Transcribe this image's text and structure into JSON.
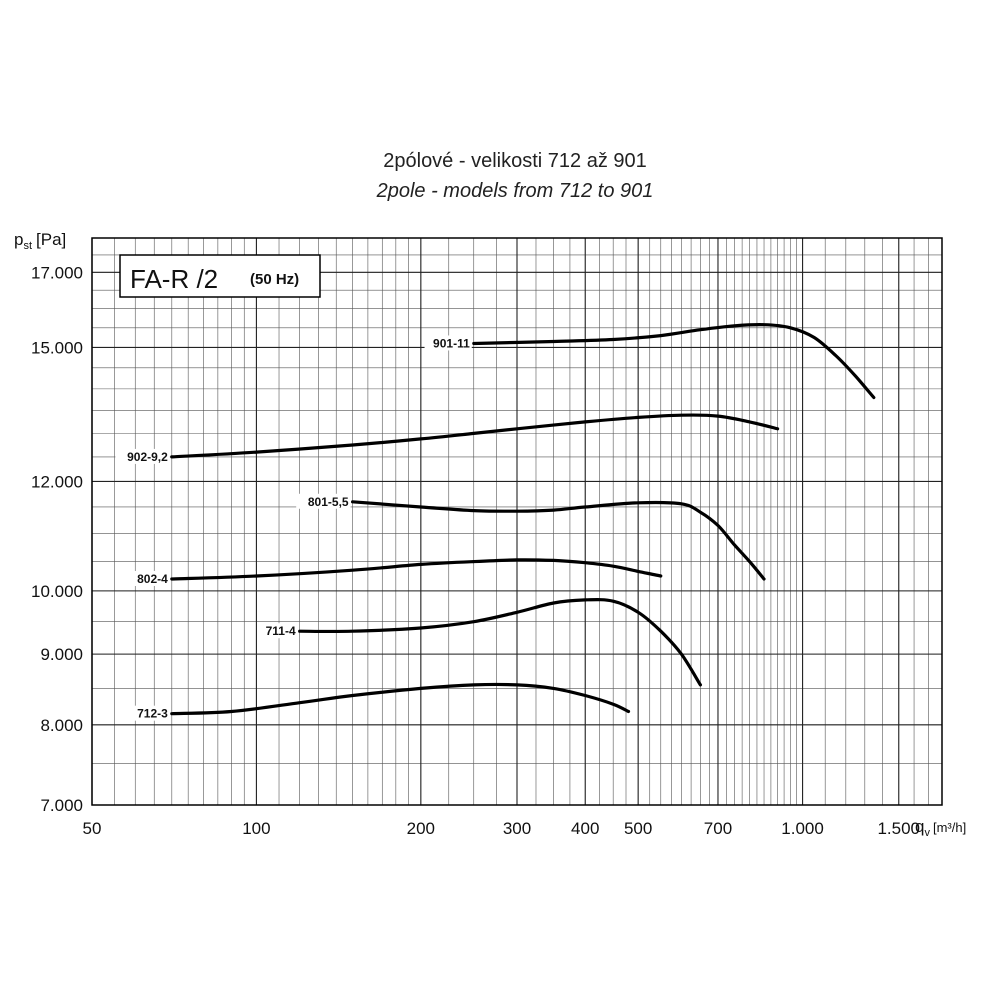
{
  "chart_data": {
    "type": "line",
    "title": "2pólové - velikosti 712 až 901",
    "subtitle": "2pole - models from 712 to 901",
    "xlabel": "q",
    "xlabel_sub": "v",
    "xlabel_unit": "[m³/h]",
    "ylabel": "p",
    "ylabel_sub": "st",
    "ylabel_unit": "[Pa]",
    "x_scale": "log",
    "y_scale": "log",
    "xlim": [
      50,
      1800
    ],
    "ylim": [
      7000,
      18000
    ],
    "grid": true,
    "x_ticks": [
      {
        "value": 50,
        "label": "50"
      },
      {
        "value": 100,
        "label": "100"
      },
      {
        "value": 200,
        "label": "200"
      },
      {
        "value": 300,
        "label": "300"
      },
      {
        "value": 400,
        "label": "400"
      },
      {
        "value": 500,
        "label": "500"
      },
      {
        "value": 700,
        "label": "700"
      },
      {
        "value": 1000,
        "label": "1.000"
      },
      {
        "value": 1500,
        "label": "1.500"
      }
    ],
    "y_ticks": [
      {
        "value": 7000,
        "label": "7.000"
      },
      {
        "value": 8000,
        "label": "8.000"
      },
      {
        "value": 9000,
        "label": "9.000"
      },
      {
        "value": 10000,
        "label": "10.000"
      },
      {
        "value": 12000,
        "label": "12.000"
      },
      {
        "value": 15000,
        "label": "15.000"
      },
      {
        "value": 17000,
        "label": "17.000"
      }
    ],
    "legend_box": {
      "main": "FA-R /2",
      "freq": "(50 Hz)"
    },
    "series": [
      {
        "name": "901-11",
        "x": [
          250,
          350,
          450,
          550,
          650,
          750,
          850,
          950,
          1050,
          1150,
          1250,
          1350
        ],
        "y": [
          15100,
          15150,
          15200,
          15300,
          15450,
          15550,
          15580,
          15500,
          15250,
          14800,
          14300,
          13800
        ]
      },
      {
        "name": "902-9,2",
        "x": [
          70,
          100,
          150,
          200,
          250,
          300,
          400,
          500,
          600,
          700,
          800,
          900
        ],
        "y": [
          12500,
          12600,
          12750,
          12880,
          13000,
          13100,
          13250,
          13350,
          13400,
          13380,
          13250,
          13100
        ]
      },
      {
        "name": "801-5,5",
        "x": [
          150,
          200,
          250,
          300,
          350,
          400,
          500,
          600,
          650,
          700,
          750,
          800,
          850
        ],
        "y": [
          11600,
          11500,
          11430,
          11420,
          11440,
          11500,
          11580,
          11560,
          11400,
          11150,
          10800,
          10500,
          10200
        ]
      },
      {
        "name": "802-4",
        "x": [
          70,
          100,
          150,
          200,
          250,
          300,
          350,
          400,
          450,
          500,
          550
        ],
        "y": [
          10200,
          10250,
          10350,
          10450,
          10500,
          10530,
          10520,
          10480,
          10420,
          10330,
          10250
        ]
      },
      {
        "name": "711-4",
        "x": [
          120,
          150,
          200,
          250,
          300,
          350,
          400,
          450,
          500,
          550,
          600,
          650
        ],
        "y": [
          9350,
          9350,
          9400,
          9500,
          9650,
          9800,
          9850,
          9830,
          9650,
          9350,
          9000,
          8550
        ]
      },
      {
        "name": "712-3",
        "x": [
          70,
          90,
          120,
          150,
          200,
          250,
          300,
          350,
          400,
          450,
          480
        ],
        "y": [
          8150,
          8180,
          8300,
          8400,
          8500,
          8550,
          8550,
          8500,
          8400,
          8280,
          8180
        ]
      }
    ]
  }
}
